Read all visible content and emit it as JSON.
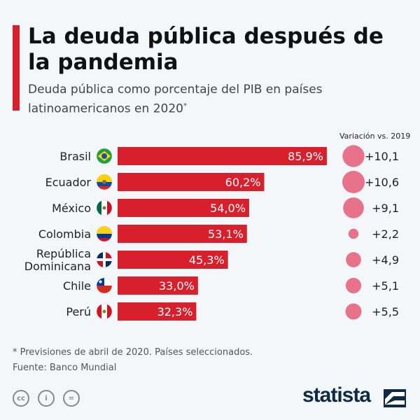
{
  "title": "La deuda pública después de la pandemia",
  "subtitle": "Deuda pública como porcentaje del PIB en países latinoamericanos en 2020",
  "subtitle_mark": "*",
  "variation_header": "Variación vs. 2019",
  "chart_data": {
    "type": "bar",
    "orientation": "horizontal",
    "categories": [
      "Brasil",
      "Ecuador",
      "México",
      "Colombia",
      "República Dominicana",
      "Chile",
      "Perú"
    ],
    "values": [
      85.9,
      60.2,
      54.0,
      53.1,
      45.3,
      33.0,
      32.3
    ],
    "value_labels": [
      "85,9%",
      "60,2%",
      "54,0%",
      "53,1%",
      "45,3%",
      "33,0%",
      "32,3%"
    ],
    "variation": [
      10.1,
      10.6,
      9.1,
      2.2,
      4.9,
      5.1,
      5.5
    ],
    "variation_labels": [
      "+10,1",
      "+10,6",
      "+9,1",
      "+2,2",
      "+4,9",
      "+5,1",
      "+5,5"
    ],
    "bar_color": "#d8202c",
    "bubble_color": "#e8728a"
  },
  "flags": [
    "brazil-flag",
    "ecuador-flag",
    "mexico-flag",
    "colombia-flag",
    "dominican-republic-flag",
    "chile-flag",
    "peru-flag"
  ],
  "footnote": "* Previsiones de abril de 2020. Países seleccionados.",
  "source": "Fuente: Banco Mundial",
  "license_icons": [
    "cc",
    "by",
    "nd"
  ],
  "brand": "statista"
}
